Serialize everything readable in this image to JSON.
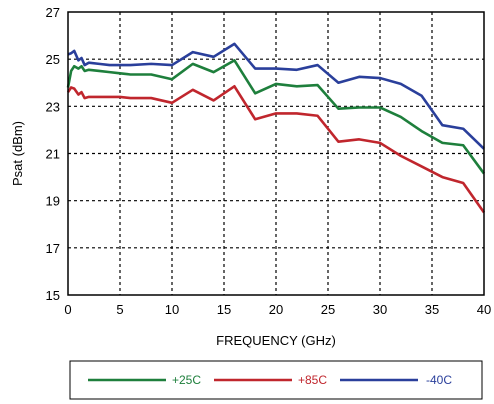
{
  "chart_data": {
    "type": "line",
    "xlabel": "FREQUENCY (GHz)",
    "ylabel": "Psat (dBm)",
    "xlim": [
      0,
      40
    ],
    "ylim": [
      15,
      27
    ],
    "xticks": [
      0,
      5,
      10,
      15,
      20,
      25,
      30,
      35,
      40
    ],
    "yticks": [
      15,
      17,
      19,
      21,
      23,
      25,
      27
    ],
    "grid": true,
    "legend_position": "bottom",
    "series": [
      {
        "name": "+25C",
        "color": "#1e7f3c",
        "x": [
          0,
          0.3,
          0.6,
          1.0,
          1.3,
          1.6,
          2,
          3,
          4,
          5,
          6,
          8,
          10,
          12,
          14,
          16,
          18,
          20,
          22,
          24,
          26,
          28,
          30,
          32,
          34,
          36,
          38,
          40
        ],
        "y": [
          23.8,
          24.5,
          24.7,
          24.6,
          24.7,
          24.5,
          24.55,
          24.5,
          24.45,
          24.4,
          24.35,
          24.35,
          24.15,
          24.8,
          24.45,
          24.95,
          23.55,
          23.95,
          23.85,
          23.9,
          22.9,
          22.95,
          22.95,
          22.55,
          21.95,
          21.45,
          21.35,
          20.15
        ]
      },
      {
        "name": "+85C",
        "color": "#c0262d",
        "x": [
          0,
          0.3,
          0.6,
          1.0,
          1.3,
          1.6,
          2,
          3,
          4,
          5,
          6,
          8,
          10,
          12,
          14,
          16,
          18,
          20,
          22,
          24,
          26,
          28,
          30,
          32,
          34,
          36,
          38,
          40
        ],
        "y": [
          23.6,
          23.8,
          23.75,
          23.5,
          23.6,
          23.35,
          23.4,
          23.4,
          23.4,
          23.4,
          23.35,
          23.35,
          23.15,
          23.7,
          23.25,
          23.85,
          22.45,
          22.7,
          22.7,
          22.6,
          21.5,
          21.6,
          21.45,
          20.9,
          20.45,
          20.0,
          19.75,
          18.5
        ]
      },
      {
        "name": "-40C",
        "color": "#2a3f9b",
        "x": [
          0,
          0.3,
          0.6,
          1.0,
          1.3,
          1.6,
          2,
          3,
          4,
          5,
          6,
          8,
          10,
          12,
          14,
          16,
          18,
          20,
          22,
          24,
          26,
          28,
          30,
          32,
          34,
          36,
          38,
          40
        ],
        "y": [
          25.2,
          25.25,
          25.35,
          24.95,
          25.05,
          24.75,
          24.85,
          24.8,
          24.75,
          24.75,
          24.75,
          24.8,
          24.75,
          25.3,
          25.1,
          25.65,
          24.6,
          24.6,
          24.55,
          24.75,
          24.0,
          24.25,
          24.2,
          23.95,
          23.45,
          22.2,
          22.05,
          21.2
        ]
      }
    ]
  }
}
